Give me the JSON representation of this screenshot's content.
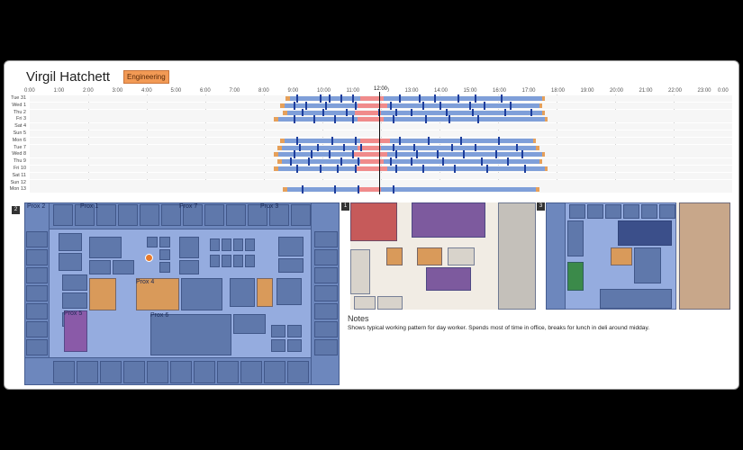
{
  "person": {
    "name": "Virgil Hatchett",
    "department": "Engineering"
  },
  "timeline": {
    "ticks": [
      "0:00",
      "1:00",
      "2:00",
      "3:00",
      "4:00",
      "5:00",
      "6:00",
      "7:00",
      "8:00",
      "9:00",
      "10:00",
      "11:00",
      "12:00",
      "13:00",
      "14:00",
      "15:00",
      "16:00",
      "17:00",
      "18:00",
      "19:00",
      "20:00",
      "21:00",
      "22:00",
      "23:00",
      "0:00"
    ],
    "now_label": "12:00",
    "days": [
      "Tue 31",
      "Wed 1",
      "Thu 2",
      "Fri 3",
      "Sat 4",
      "Sun 5",
      "Mon 6",
      "Tue 7",
      "Wed 8",
      "Thu 9",
      "Fri 10",
      "Sat 11",
      "Sun 12",
      "Mon 13"
    ],
    "bars": [
      {
        "start": 8.9,
        "end": 17.5,
        "lunch": [
          11.3,
          12.1
        ],
        "marks": [
          9.1,
          9.9,
          10.2,
          10.6,
          11.0,
          12.6,
          13.3,
          13.8,
          14.6,
          15.2,
          16.1
        ]
      },
      {
        "start": 8.7,
        "end": 17.4,
        "lunch": [
          11.2,
          12.2
        ],
        "marks": [
          9.0,
          9.4,
          10.1,
          11.1,
          12.3,
          13.4,
          14.0,
          15.0,
          15.5,
          16.4
        ]
      },
      {
        "start": 8.8,
        "end": 17.5,
        "lunch": [
          11.1,
          12.0
        ],
        "marks": [
          9.3,
          10.0,
          10.8,
          11.9,
          12.5,
          13.0,
          14.2,
          15.1,
          16.2,
          17.1
        ]
      },
      {
        "start": 8.5,
        "end": 17.6,
        "lunch": [
          11.2,
          12.1
        ],
        "marks": [
          9.0,
          9.7,
          10.4,
          11.0,
          12.4,
          13.5,
          14.3,
          15.3
        ]
      },
      null,
      null,
      {
        "start": 8.7,
        "end": 17.2,
        "lunch": [
          11.3,
          12.3
        ],
        "marks": [
          9.1,
          10.3,
          11.1,
          12.6,
          13.6,
          14.7,
          16.0
        ]
      },
      {
        "start": 8.6,
        "end": 17.3,
        "lunch": [
          11.2,
          12.0
        ],
        "marks": [
          9.2,
          9.8,
          10.7,
          11.3,
          12.4,
          13.1,
          14.4,
          15.2,
          16.6
        ]
      },
      {
        "start": 8.5,
        "end": 17.5,
        "lunch": [
          11.0,
          12.2
        ],
        "marks": [
          9.0,
          9.6,
          10.2,
          11.0,
          12.5,
          13.2,
          13.9,
          14.8,
          15.9,
          16.8
        ]
      },
      {
        "start": 8.6,
        "end": 17.4,
        "lunch": [
          11.3,
          12.1
        ],
        "marks": [
          8.9,
          9.5,
          10.6,
          11.2,
          12.3,
          13.0,
          14.1,
          15.4,
          16.3
        ]
      },
      {
        "start": 8.5,
        "end": 17.6,
        "lunch": [
          11.1,
          12.2
        ],
        "marks": [
          9.1,
          9.9,
          10.5,
          11.1,
          12.5,
          13.4,
          14.5,
          15.6,
          16.9
        ]
      },
      null,
      null,
      {
        "start": 8.8,
        "end": 17.3,
        "lunch": [
          11.2,
          12.0
        ],
        "marks": [
          9.3,
          10.4,
          11.2,
          12.4
        ]
      }
    ]
  },
  "floors": {
    "f2": {
      "number": "2",
      "prox": [
        "Prox 2",
        "Prox 1",
        "Prox 7",
        "Prox 3",
        "Prox 4",
        "Prox 5",
        "Prox 6"
      ]
    },
    "f1": {
      "number": "1"
    },
    "f3": {
      "number": "3"
    }
  },
  "notes": {
    "title": "Notes",
    "text": "Shows typical working pattern for day worker. Spends most of time in office, breaks for lunch in deli around midday."
  },
  "colors": {
    "accent": "#f29a55",
    "bar": "#7f9fd9",
    "lunch": "#f08b8b",
    "mark": "#1c3d9c",
    "floorBg": "#95acdf",
    "room": "#5f78ab"
  }
}
